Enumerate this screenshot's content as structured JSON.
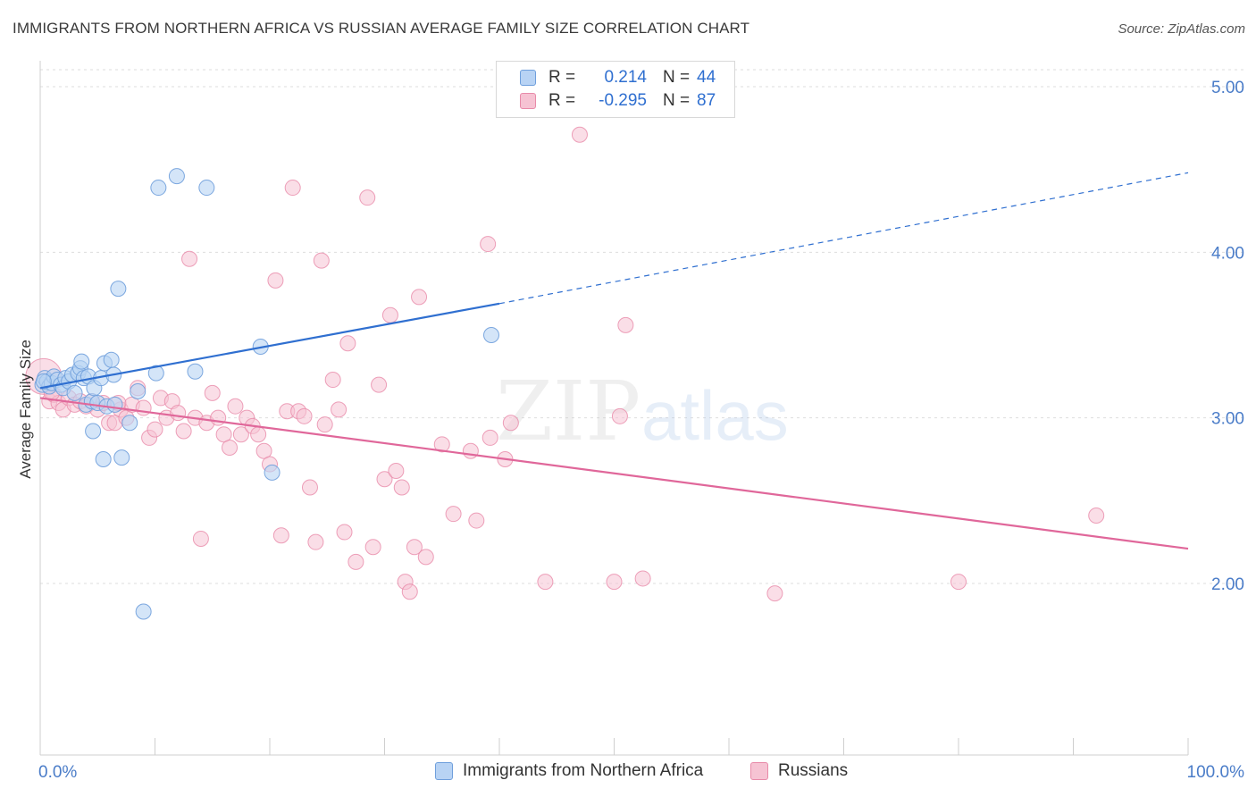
{
  "title": "IMMIGRANTS FROM NORTHERN AFRICA VS RUSSIAN AVERAGE FAMILY SIZE CORRELATION CHART",
  "source": "Source: ZipAtlas.com",
  "watermark": {
    "part1": "ZIP",
    "part2": "atlas"
  },
  "colors": {
    "blue_fill": "#b8d3f4",
    "blue_stroke": "#6f9fdc",
    "blue_line": "#2f6fd0",
    "pink_fill": "#f6c3d3",
    "pink_stroke": "#e88aa9",
    "pink_line": "#e0679a",
    "tick_text": "#4a7cc8",
    "grid": "#dddddd"
  },
  "legend": {
    "rows": [
      {
        "r_label": "R =",
        "r_value": "0.214",
        "n_label": "N =",
        "n_value": "44"
      },
      {
        "r_label": "R =",
        "r_value": "-0.295",
        "n_label": "N =",
        "n_value": "87"
      }
    ]
  },
  "bottom_legend": [
    "Immigrants from Northern Africa",
    "Russians"
  ],
  "chart_data": {
    "type": "scatter",
    "title": "IMMIGRANTS FROM NORTHERN AFRICA VS RUSSIAN AVERAGE FAMILY SIZE CORRELATION CHART",
    "xlabel": "",
    "ylabel": "Average Family Size",
    "xlim": [
      0,
      100
    ],
    "ylim": [
      1.0,
      5.15
    ],
    "x_tick_labels": [
      {
        "value": 0,
        "label": "0.0%"
      },
      {
        "value": 100,
        "label": "100.0%"
      }
    ],
    "y_ticks": [
      {
        "value": 2.0,
        "label": "2.00"
      },
      {
        "value": 3.0,
        "label": "3.00"
      },
      {
        "value": 4.0,
        "label": "4.00"
      },
      {
        "value": 5.0,
        "label": "5.00"
      }
    ],
    "grid": true,
    "legend_position": "top-center",
    "series": [
      {
        "name": "Immigrants from Northern Africa",
        "color": "#6f9fdc",
        "r": 0.214,
        "n": 44,
        "trend": {
          "x0": 0,
          "y0": 3.18,
          "x1": 40.0,
          "y1": 3.69,
          "x_dash_end": 100,
          "y_dash_end": 4.48
        },
        "points": [
          [
            0.2,
            3.2
          ],
          [
            0.4,
            3.24
          ],
          [
            0.6,
            3.22
          ],
          [
            0.8,
            3.19
          ],
          [
            1.0,
            3.21
          ],
          [
            1.2,
            3.25
          ],
          [
            1.5,
            3.23
          ],
          [
            1.8,
            3.2
          ],
          [
            2.0,
            3.18
          ],
          [
            2.2,
            3.24
          ],
          [
            2.5,
            3.22
          ],
          [
            2.8,
            3.26
          ],
          [
            3.0,
            3.15
          ],
          [
            3.3,
            3.27
          ],
          [
            3.5,
            3.3
          ],
          [
            3.6,
            3.34
          ],
          [
            3.8,
            3.24
          ],
          [
            4.0,
            3.08
          ],
          [
            4.2,
            3.25
          ],
          [
            4.5,
            3.1
          ],
          [
            4.6,
            2.92
          ],
          [
            4.7,
            3.18
          ],
          [
            5.0,
            3.09
          ],
          [
            5.3,
            3.24
          ],
          [
            5.5,
            2.75
          ],
          [
            5.6,
            3.33
          ],
          [
            5.8,
            3.07
          ],
          [
            6.2,
            3.35
          ],
          [
            6.4,
            3.26
          ],
          [
            6.5,
            3.08
          ],
          [
            6.8,
            3.78
          ],
          [
            7.1,
            2.76
          ],
          [
            7.8,
            2.97
          ],
          [
            8.5,
            3.16
          ],
          [
            9.0,
            1.83
          ],
          [
            10.1,
            3.27
          ],
          [
            10.3,
            4.39
          ],
          [
            11.9,
            4.46
          ],
          [
            13.5,
            3.28
          ],
          [
            14.5,
            4.39
          ],
          [
            19.2,
            3.43
          ],
          [
            20.2,
            2.67
          ],
          [
            39.3,
            3.5
          ],
          [
            0.3,
            3.22
          ]
        ]
      },
      {
        "name": "Russians",
        "color": "#e88aa9",
        "r": -0.295,
        "n": 87,
        "trend": {
          "x0": 0,
          "y0": 3.12,
          "x1": 100,
          "y1": 2.21
        },
        "points": [
          [
            0.3,
            3.25
          ],
          [
            0.8,
            3.1
          ],
          [
            1.2,
            3.14
          ],
          [
            1.6,
            3.09
          ],
          [
            2.0,
            3.05
          ],
          [
            2.5,
            3.12
          ],
          [
            3.0,
            3.08
          ],
          [
            3.5,
            3.1
          ],
          [
            4.0,
            3.07
          ],
          [
            4.5,
            3.1
          ],
          [
            5.0,
            3.05
          ],
          [
            5.5,
            3.09
          ],
          [
            6.0,
            2.97
          ],
          [
            6.5,
            2.97
          ],
          [
            7.0,
            3.05
          ],
          [
            7.5,
            3.0
          ],
          [
            8.0,
            3.08
          ],
          [
            8.5,
            3.18
          ],
          [
            9.0,
            3.06
          ],
          [
            9.5,
            2.88
          ],
          [
            10.0,
            2.93
          ],
          [
            10.5,
            3.12
          ],
          [
            11.0,
            3.0
          ],
          [
            11.5,
            3.1
          ],
          [
            12.0,
            3.03
          ],
          [
            12.5,
            2.92
          ],
          [
            13.0,
            3.96
          ],
          [
            13.5,
            3.0
          ],
          [
            14.0,
            2.27
          ],
          [
            14.5,
            2.97
          ],
          [
            15.0,
            3.15
          ],
          [
            15.5,
            3.0
          ],
          [
            16.0,
            2.9
          ],
          [
            16.5,
            2.82
          ],
          [
            17.0,
            3.07
          ],
          [
            17.5,
            2.9
          ],
          [
            18.0,
            3.0
          ],
          [
            18.5,
            2.95
          ],
          [
            19.0,
            2.9
          ],
          [
            19.5,
            2.8
          ],
          [
            20.0,
            2.72
          ],
          [
            20.5,
            3.83
          ],
          [
            21.0,
            2.29
          ],
          [
            21.5,
            3.04
          ],
          [
            22.0,
            4.39
          ],
          [
            22.5,
            3.04
          ],
          [
            23.0,
            3.01
          ],
          [
            23.5,
            2.58
          ],
          [
            24.0,
            2.25
          ],
          [
            24.5,
            3.95
          ],
          [
            24.8,
            2.96
          ],
          [
            25.5,
            3.23
          ],
          [
            26.0,
            3.05
          ],
          [
            26.5,
            2.31
          ],
          [
            26.8,
            3.45
          ],
          [
            27.5,
            2.13
          ],
          [
            28.5,
            4.33
          ],
          [
            29.0,
            2.22
          ],
          [
            29.5,
            3.2
          ],
          [
            30.0,
            2.63
          ],
          [
            30.5,
            3.62
          ],
          [
            31.0,
            2.68
          ],
          [
            31.5,
            2.58
          ],
          [
            31.8,
            2.01
          ],
          [
            32.2,
            1.95
          ],
          [
            32.6,
            2.22
          ],
          [
            33.0,
            3.73
          ],
          [
            33.6,
            2.16
          ],
          [
            35.0,
            2.84
          ],
          [
            36.0,
            2.42
          ],
          [
            37.5,
            2.8
          ],
          [
            38.0,
            2.38
          ],
          [
            39.0,
            4.05
          ],
          [
            39.2,
            2.88
          ],
          [
            40.5,
            2.75
          ],
          [
            41.0,
            2.97
          ],
          [
            44.0,
            2.01
          ],
          [
            47.0,
            4.71
          ],
          [
            50.0,
            2.01
          ],
          [
            50.5,
            3.01
          ],
          [
            51.0,
            3.56
          ],
          [
            52.5,
            2.03
          ],
          [
            64.0,
            1.94
          ],
          [
            80.0,
            2.01
          ],
          [
            92.0,
            2.41
          ],
          [
            1.0,
            3.15
          ],
          [
            6.8,
            3.09
          ]
        ]
      }
    ]
  }
}
